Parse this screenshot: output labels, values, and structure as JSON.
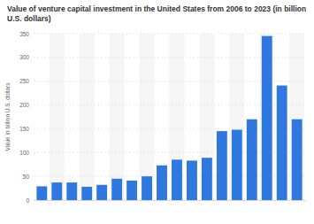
{
  "chart_data": {
    "type": "bar",
    "title": "Value of venture capital investment in the United States from 2006 to 2023 (in billion U.S. dollars)",
    "y_label": "Value in billion U.S. dollars",
    "categories": [
      null,
      null,
      null,
      null,
      null,
      null,
      null,
      null,
      null,
      null,
      null,
      null,
      null,
      null,
      null,
      null,
      null,
      null
    ],
    "values": [
      29,
      37,
      37,
      28,
      32,
      45,
      41,
      50,
      73,
      85,
      83,
      89,
      145,
      148,
      170,
      345,
      241,
      170
    ],
    "color": "#2f78e0",
    "ylim": [
      0,
      350
    ],
    "yticks": [
      0,
      50,
      100,
      150,
      200,
      250,
      300,
      350
    ],
    "grid": true,
    "tick_labels": "y"
  }
}
